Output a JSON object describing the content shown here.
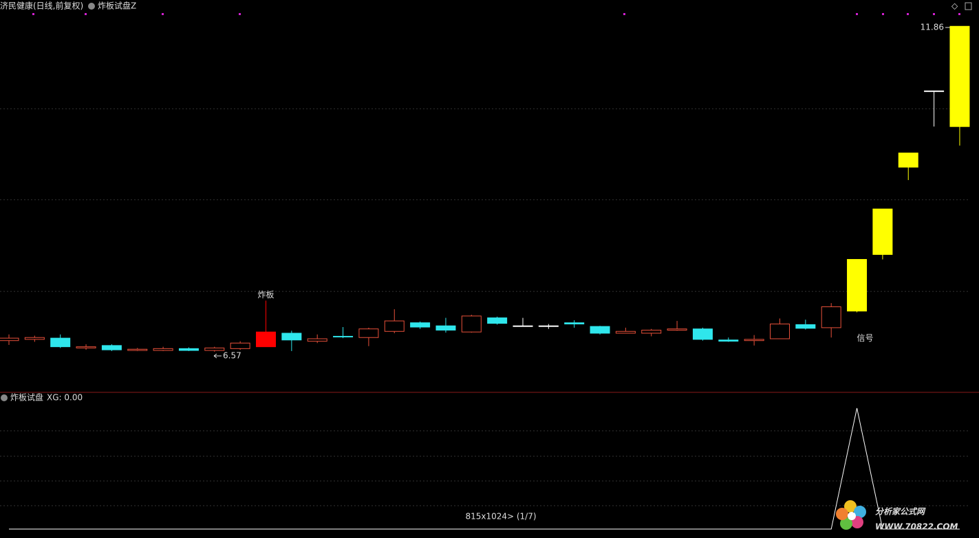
{
  "header": {
    "title": "济民健康(日线,前复权)",
    "indicator": "炸板试盘Z"
  },
  "status": "815x1024> (1/7)",
  "watermark": {
    "name": "分析家公式网",
    "url": "WWW.70822.COM"
  },
  "chart_data": [
    {
      "type": "candlestick",
      "open": [
        6.75,
        6.77,
        6.79,
        6.63,
        6.67,
        6.59,
        6.59,
        6.62,
        6.59,
        6.62,
        6.65,
        6.87,
        6.74,
        6.82,
        6.8,
        6.9,
        7.04,
        6.99,
        6.89,
        7.12,
        6.99,
        6.99,
        7.04,
        6.98,
        6.87,
        6.87,
        6.92,
        6.94,
        6.76,
        6.75,
        6.78,
        7.01,
        6.96,
        7.23,
        8.15,
        9.57,
        10.81,
        10.23
      ],
      "close": [
        6.79,
        6.8,
        6.65,
        6.65,
        6.6,
        6.61,
        6.62,
        6.59,
        6.63,
        6.71,
        6.89,
        6.76,
        6.78,
        6.81,
        6.94,
        7.07,
        6.97,
        6.92,
        7.15,
        7.03,
        6.99,
        6.99,
        7.02,
        6.87,
        6.9,
        6.92,
        6.94,
        6.77,
        6.74,
        6.77,
        7.02,
        6.95,
        7.3,
        8.07,
        8.89,
        9.8,
        10.81,
        11.86
      ],
      "high": [
        6.85,
        6.83,
        6.85,
        6.69,
        6.69,
        6.63,
        6.65,
        6.64,
        6.65,
        6.74,
        7.4,
        6.91,
        6.85,
        6.97,
        6.96,
        7.26,
        7.06,
        7.12,
        7.17,
        7.14,
        7.12,
        7.02,
        7.08,
        6.99,
        6.96,
        6.94,
        7.07,
        6.96,
        6.8,
        6.84,
        7.11,
        7.09,
        7.36,
        8.07,
        8.89,
        9.8,
        10.81,
        11.86
      ],
      "low": [
        6.68,
        6.73,
        6.63,
        6.6,
        6.58,
        6.58,
        6.58,
        6.58,
        6.57,
        6.6,
        6.65,
        6.58,
        6.71,
        6.79,
        6.66,
        6.87,
        6.94,
        6.88,
        6.88,
        7.01,
        6.99,
        6.94,
        6.96,
        6.85,
        6.87,
        6.82,
        6.91,
        6.75,
        6.73,
        6.67,
        6.78,
        6.93,
        6.8,
        7.21,
        8.07,
        9.36,
        10.23,
        9.92
      ],
      "up_color": "#e8503a",
      "colors": [
        "#e8503a",
        "#e8503a",
        "#2fe6ec",
        "#e8503a",
        "#2fe6ec",
        "#e8503a",
        "#e8503a",
        "#2fe6ec",
        "#e8503a",
        "#e8503a",
        "#ff0000",
        "#2fe6ec",
        "#e8503a",
        "#2fe6ec",
        "#e8503a",
        "#e8503a",
        "#2fe6ec",
        "#2fe6ec",
        "#e8503a",
        "#2fe6ec",
        "#ffffff",
        "#ffffff",
        "#2fe6ec",
        "#2fe6ec",
        "#e8503a",
        "#e8503a",
        "#e8503a",
        "#2fe6ec",
        "#2fe6ec",
        "#e8503a",
        "#e8503a",
        "#2fe6ec",
        "#e8503a",
        "#ffff00",
        "#ffff00",
        "#ffff00",
        "#ffffff",
        "#ffff00"
      ],
      "ylim": [
        5.92,
        12.12
      ],
      "grid_lines": [
        10.52,
        9.04,
        7.55
      ],
      "annotations": [
        {
          "text": "炸板",
          "x": 10,
          "color": "#d8306a"
        },
        {
          "text": "信号",
          "x": 33,
          "color": "#d83a2a"
        }
      ]
    },
    {
      "type": "line",
      "title": "炸板试盘",
      "legend": "XG: 0.00",
      "color": "#ffffff",
      "values": [
        0,
        0,
        0,
        0,
        0,
        0,
        0,
        0,
        0,
        0,
        0,
        0,
        0,
        0,
        0,
        0,
        0,
        0,
        0,
        0,
        0,
        0,
        0,
        0,
        0,
        0,
        0,
        0,
        0,
        0,
        0,
        0,
        0,
        1,
        0,
        0,
        0,
        0
      ],
      "ylim": [
        0,
        1
      ]
    }
  ]
}
